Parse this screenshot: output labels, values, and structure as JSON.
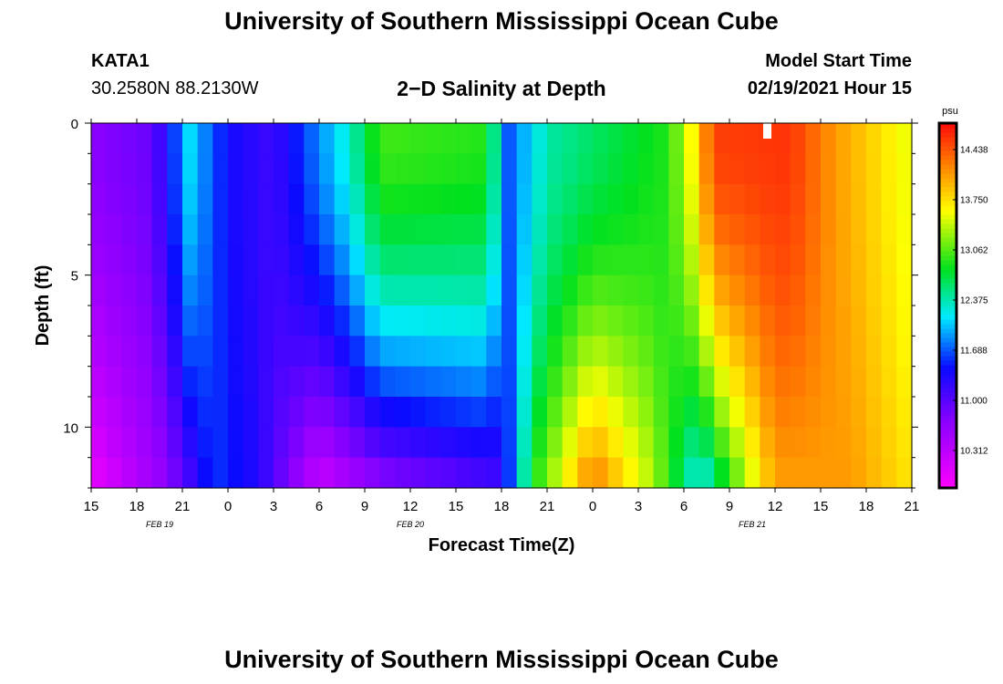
{
  "header": {
    "title": "University of Southern Mississippi Ocean Cube",
    "station_id": "KATA1",
    "station_coords": "30.2580N 88.2130W",
    "model_start_label": "Model Start Time",
    "model_start_value": "02/19/2021 Hour 15"
  },
  "footer": {
    "title": "University of Southern Mississippi Ocean Cube"
  },
  "chart_data": {
    "type": "heatmap",
    "title": "2−D Salinity at Depth",
    "xlabel": "Forecast Time(Z)",
    "ylabel": "Depth (ft)",
    "x_range_hours": [
      0,
      54
    ],
    "x_tick_labels": [
      "15",
      "18",
      "21",
      "0",
      "3",
      "6",
      "9",
      "12",
      "15",
      "18",
      "21",
      "0",
      "3",
      "6",
      "9",
      "12",
      "15",
      "18",
      "21"
    ],
    "date_labels": [
      {
        "text": "FEB 19",
        "hour": 4.5
      },
      {
        "text": "FEB 20",
        "hour": 21
      },
      {
        "text": "FEB 21",
        "hour": 43.5
      }
    ],
    "y_range_ft": [
      0,
      12
    ],
    "y_tick_labels": [
      "0",
      "5",
      "10"
    ],
    "y_tick_values": [
      0,
      5,
      10
    ],
    "colorbar": {
      "unit": "psu",
      "min": 9.8,
      "max": 14.8,
      "tick_values": [
        10.312,
        11.0,
        11.688,
        12.375,
        13.062,
        13.75,
        14.438
      ],
      "tick_labels": [
        "10.312",
        "11.000",
        "11.688",
        "12.375",
        "13.062",
        "13.750",
        "14.438"
      ]
    },
    "depth_levels_ft": [
      0.5,
      1.5,
      2.5,
      3.5,
      4.5,
      5.5,
      6.5,
      7.5,
      8.5,
      9.5,
      10.5,
      11.5
    ],
    "salinity_keyframes_surface": [
      {
        "hour": 0,
        "value": 10.7
      },
      {
        "hour": 4,
        "value": 10.9
      },
      {
        "hour": 6.5,
        "value": 12.1
      },
      {
        "hour": 9,
        "value": 11.4
      },
      {
        "hour": 12,
        "value": 11.15
      },
      {
        "hour": 17,
        "value": 12.3
      },
      {
        "hour": 19,
        "value": 13.0
      },
      {
        "hour": 26,
        "value": 12.9
      },
      {
        "hour": 27.5,
        "value": 11.7
      },
      {
        "hour": 30,
        "value": 12.4
      },
      {
        "hour": 33,
        "value": 12.6
      },
      {
        "hour": 38,
        "value": 12.9
      },
      {
        "hour": 39.5,
        "value": 13.6
      },
      {
        "hour": 41,
        "value": 14.55
      },
      {
        "hour": 46,
        "value": 14.6
      },
      {
        "hour": 49,
        "value": 14.1
      },
      {
        "hour": 54,
        "value": 13.5
      }
    ],
    "salinity_keyframes_bottom": [
      {
        "hour": 0,
        "value": 10.0
      },
      {
        "hour": 5,
        "value": 10.7
      },
      {
        "hour": 8,
        "value": 11.6
      },
      {
        "hour": 11,
        "value": 11.3
      },
      {
        "hour": 15,
        "value": 10.3
      },
      {
        "hour": 19,
        "value": 10.8
      },
      {
        "hour": 27,
        "value": 11.2
      },
      {
        "hour": 29,
        "value": 12.8
      },
      {
        "hour": 33,
        "value": 14.2
      },
      {
        "hour": 37,
        "value": 13.3
      },
      {
        "hour": 40,
        "value": 12.2
      },
      {
        "hour": 42,
        "value": 13.0
      },
      {
        "hour": 45,
        "value": 14.1
      },
      {
        "hour": 50,
        "value": 14.1
      },
      {
        "hour": 54,
        "value": 13.7
      }
    ]
  }
}
